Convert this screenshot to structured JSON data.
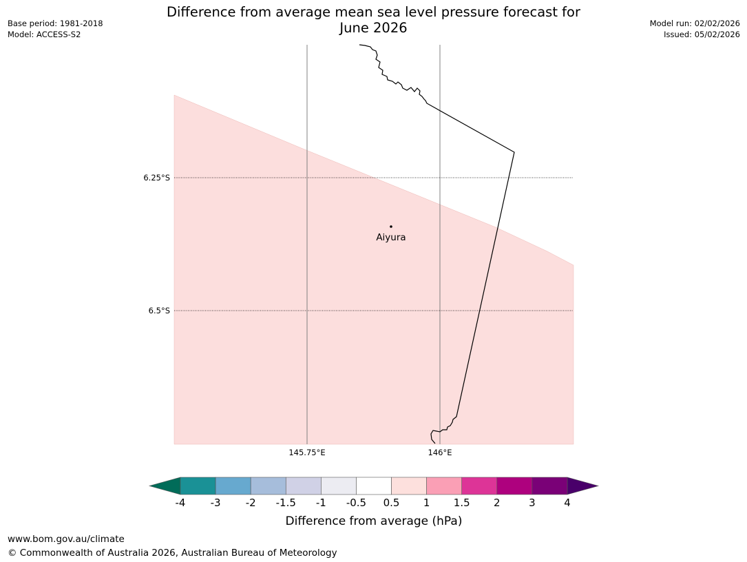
{
  "title": {
    "line1": "Difference from average mean sea level pressure forecast for",
    "line2": "June 2026"
  },
  "meta_left": {
    "base_period": "Base period: 1981-2018",
    "model": "Model: ACCESS-S2"
  },
  "meta_right": {
    "model_run": "Model run: 02/02/2026",
    "issued": "Issued: 05/02/2026"
  },
  "map": {
    "lat_labels": [
      "6.25°S",
      "6.5°S"
    ],
    "lon_labels": [
      "145.75°E",
      "146°E"
    ],
    "place": "Aiyura",
    "fill_color": "#fcdedd",
    "fill_value_range": "0.5 to 1"
  },
  "colorbar": {
    "title": "Difference from average (hPa)",
    "ticks": [
      "-4",
      "-3",
      "-2",
      "-1.5",
      "-1",
      "-0.5",
      "0.5",
      "1",
      "1.5",
      "2",
      "3",
      "4"
    ],
    "colors": [
      "#1a9196",
      "#67a9cf",
      "#a6bddb",
      "#d0d1e6",
      "#ececf2",
      "#ffffff",
      "#fde0dd",
      "#fa9fb5",
      "#dd3497",
      "#ae017e",
      "#7a0177"
    ],
    "under_color": "#016c59",
    "over_color": "#49006a"
  },
  "footer": {
    "url": "www.bom.gov.au/climate",
    "copyright": "© Commonwealth of Australia 2026, Australian Bureau of Meteorology"
  }
}
